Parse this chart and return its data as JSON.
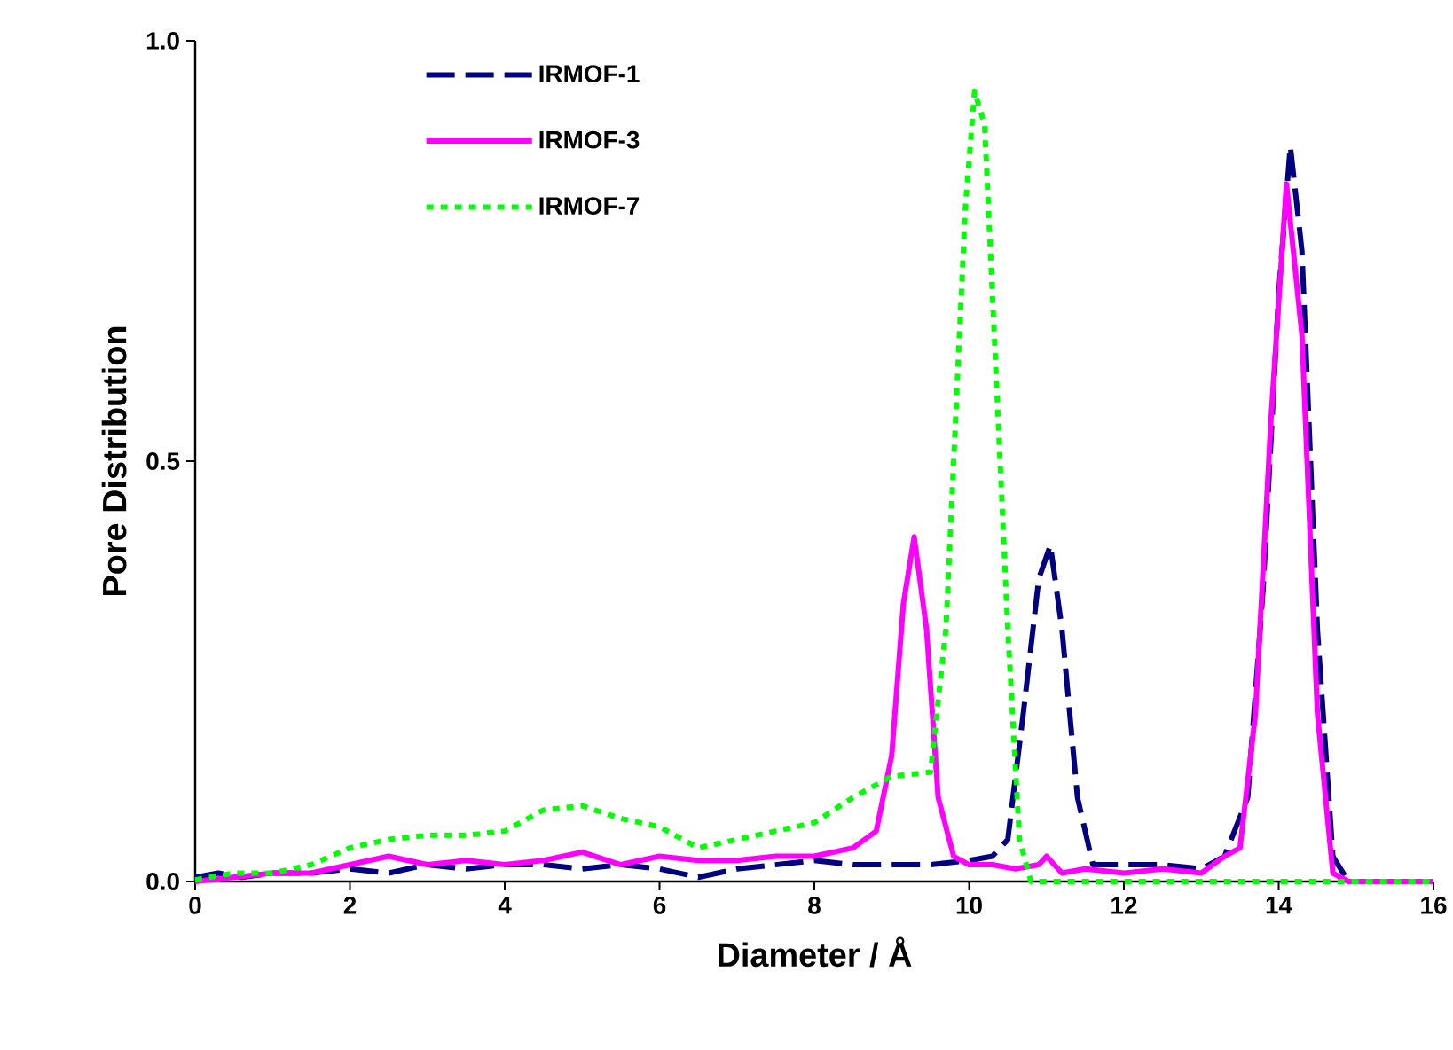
{
  "chart_data": {
    "type": "line",
    "xlabel": "Diameter / Å",
    "ylabel": "Pore Distribution",
    "xlim": [
      0,
      16
    ],
    "ylim": [
      0,
      1
    ],
    "xticks": [
      0,
      2,
      4,
      6,
      8,
      10,
      12,
      14,
      16
    ],
    "yticks": [
      {
        "value": 0,
        "label": "0.0"
      },
      {
        "value": 0.5,
        "label": "0.5"
      },
      {
        "value": 1,
        "label": "1.0"
      }
    ],
    "grid": false,
    "legend": "top left",
    "series": [
      {
        "name": "IRMOF-1",
        "color": "#000080",
        "line_style": "dashed",
        "x": [
          0,
          0.3,
          0.6,
          1,
          1.5,
          2,
          2.5,
          3,
          3.5,
          4,
          4.5,
          5,
          5.5,
          6,
          6.5,
          7,
          7.5,
          8,
          8.5,
          9,
          9.5,
          10,
          10.3,
          10.5,
          10.7,
          10.9,
          11.05,
          11.2,
          11.4,
          11.6,
          12,
          12.5,
          13,
          13.3,
          13.6,
          13.8,
          14,
          14.15,
          14.3,
          14.5,
          14.7,
          14.9,
          15.5,
          16
        ],
        "values": [
          0.005,
          0.01,
          0.005,
          0.01,
          0.01,
          0.015,
          0.01,
          0.02,
          0.015,
          0.02,
          0.02,
          0.015,
          0.02,
          0.015,
          0.005,
          0.015,
          0.02,
          0.025,
          0.02,
          0.02,
          0.02,
          0.025,
          0.03,
          0.05,
          0.2,
          0.36,
          0.4,
          0.3,
          0.1,
          0.02,
          0.02,
          0.02,
          0.015,
          0.03,
          0.1,
          0.35,
          0.7,
          0.875,
          0.75,
          0.3,
          0.03,
          0,
          0,
          0
        ]
      },
      {
        "name": "IRMOF-3",
        "color": "#ff00ff",
        "line_style": "solid",
        "x": [
          0,
          0.5,
          1,
          1.5,
          2,
          2.5,
          3,
          3.5,
          4,
          4.5,
          5,
          5.5,
          6,
          6.5,
          7,
          7.5,
          8,
          8.5,
          8.8,
          9,
          9.15,
          9.29,
          9.45,
          9.6,
          9.8,
          10,
          10.3,
          10.6,
          10.9,
          11,
          11.2,
          11.5,
          12,
          12.5,
          13,
          13.3,
          13.5,
          13.7,
          13.9,
          14.1,
          14.3,
          14.5,
          14.7,
          14.9,
          15.5,
          16
        ],
        "values": [
          0,
          0.005,
          0.01,
          0.01,
          0.02,
          0.03,
          0.02,
          0.025,
          0.02,
          0.025,
          0.035,
          0.02,
          0.03,
          0.025,
          0.025,
          0.03,
          0.03,
          0.04,
          0.06,
          0.15,
          0.33,
          0.41,
          0.3,
          0.1,
          0.03,
          0.02,
          0.02,
          0.015,
          0.02,
          0.03,
          0.01,
          0.015,
          0.01,
          0.015,
          0.01,
          0.03,
          0.04,
          0.2,
          0.55,
          0.83,
          0.65,
          0.2,
          0.01,
          0,
          0,
          0
        ]
      },
      {
        "name": "IRMOF-7",
        "color": "#00ff00",
        "line_style": "dotted",
        "x": [
          0,
          0.5,
          1,
          1.5,
          2,
          2.5,
          3,
          3.5,
          4,
          4.5,
          5,
          5.5,
          6,
          6.5,
          7,
          7.5,
          8,
          8.5,
          9,
          9.5,
          9.7,
          9.85,
          9.95,
          10.07,
          10.2,
          10.35,
          10.5,
          10.65,
          10.8,
          11,
          12,
          13,
          14,
          15,
          16
        ],
        "values": [
          0.002,
          0.01,
          0.01,
          0.02,
          0.04,
          0.05,
          0.055,
          0.055,
          0.06,
          0.085,
          0.09,
          0.075,
          0.065,
          0.04,
          0.05,
          0.06,
          0.07,
          0.1,
          0.125,
          0.13,
          0.3,
          0.6,
          0.8,
          0.94,
          0.9,
          0.6,
          0.3,
          0.05,
          0,
          0,
          0,
          0,
          0,
          0,
          0
        ]
      }
    ]
  }
}
